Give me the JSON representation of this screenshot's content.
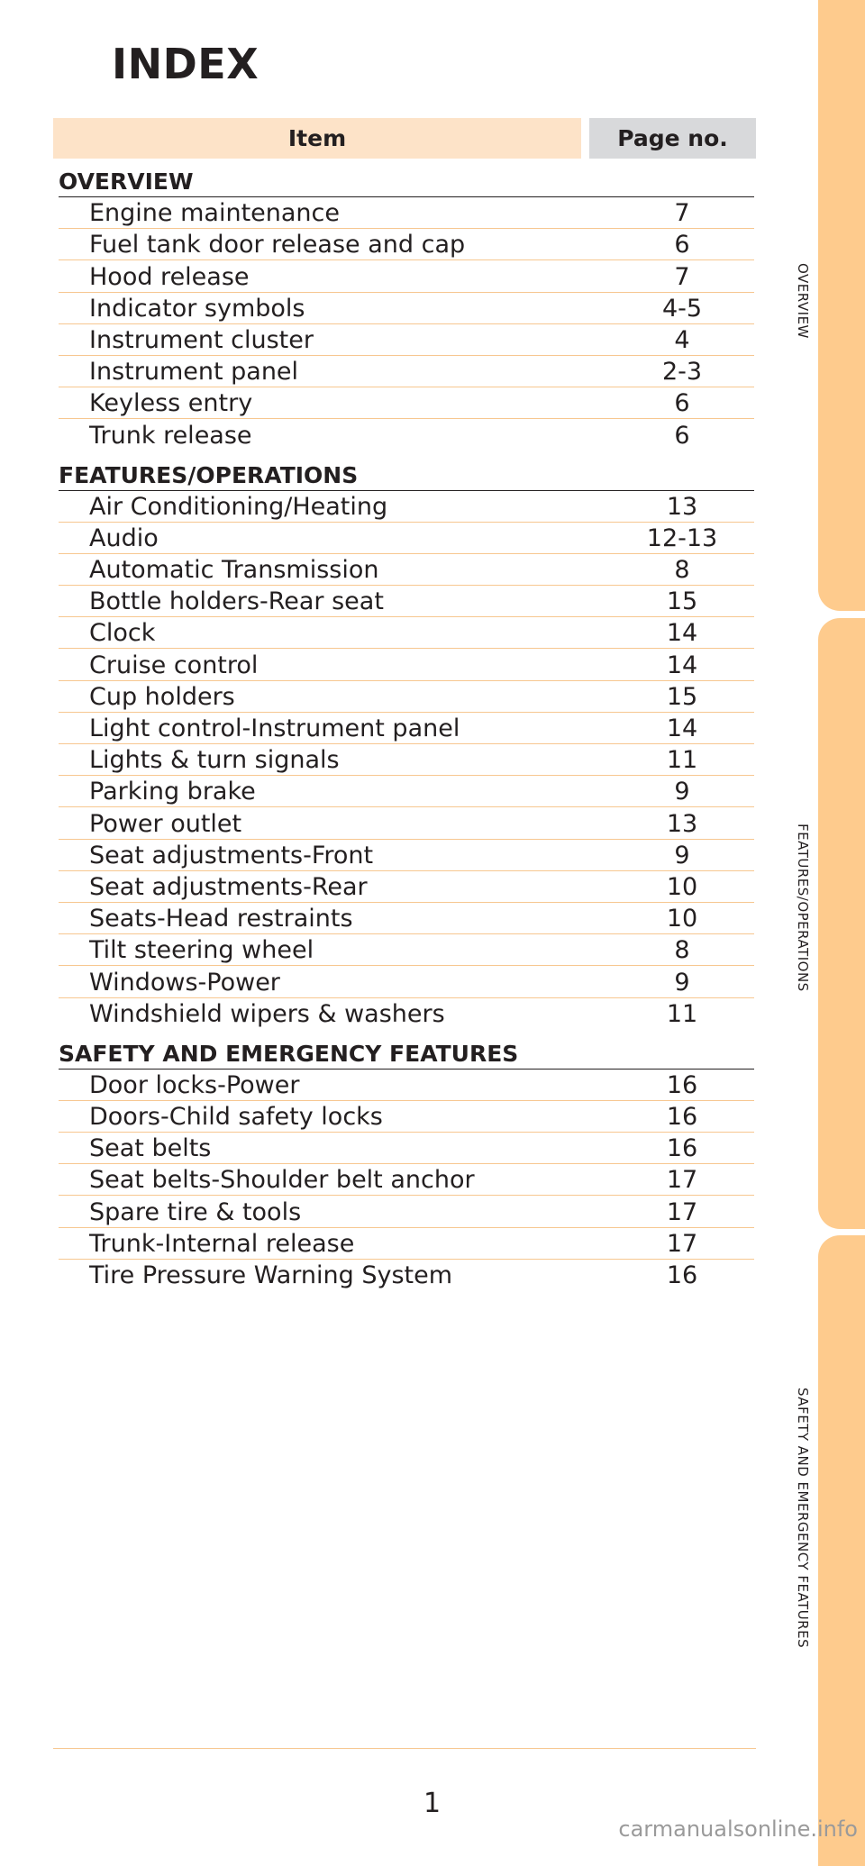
{
  "title": "INDEX",
  "columns": {
    "item": "Item",
    "page": "Page no."
  },
  "sections": [
    {
      "title": "OVERVIEW",
      "rows": [
        {
          "item": "Engine maintenance",
          "page": "7"
        },
        {
          "item": "Fuel tank door release and cap",
          "page": "6"
        },
        {
          "item": "Hood release",
          "page": "7"
        },
        {
          "item": "Indicator symbols",
          "page": "4-5"
        },
        {
          "item": "Instrument cluster",
          "page": "4"
        },
        {
          "item": "Instrument panel",
          "page": "2-3"
        },
        {
          "item": "Keyless entry",
          "page": "6"
        },
        {
          "item": "Trunk release",
          "page": "6"
        }
      ]
    },
    {
      "title": "FEATURES/OPERATIONS",
      "rows": [
        {
          "item": "Air Conditioning/Heating",
          "page": "13"
        },
        {
          "item": "Audio",
          "page": "12-13"
        },
        {
          "item": "Automatic Transmission",
          "page": "8"
        },
        {
          "item": "Bottle holders-Rear seat",
          "page": "15"
        },
        {
          "item": "Clock",
          "page": "14"
        },
        {
          "item": "Cruise control",
          "page": "14"
        },
        {
          "item": "Cup holders",
          "page": "15"
        },
        {
          "item": "Light control-Instrument panel",
          "page": "14"
        },
        {
          "item": "Lights & turn signals",
          "page": "11"
        },
        {
          "item": "Parking brake",
          "page": "9"
        },
        {
          "item": "Power outlet",
          "page": "13"
        },
        {
          "item": "Seat adjustments-Front",
          "page": "9"
        },
        {
          "item": "Seat adjustments-Rear",
          "page": "10"
        },
        {
          "item": "Seats-Head restraints",
          "page": "10"
        },
        {
          "item": "Tilt steering wheel",
          "page": "8"
        },
        {
          "item": "Windows-Power",
          "page": "9"
        },
        {
          "item": "Windshield wipers & washers",
          "page": "11"
        }
      ]
    },
    {
      "title": "SAFETY AND EMERGENCY FEATURES",
      "rows": [
        {
          "item": "Door locks-Power",
          "page": "16"
        },
        {
          "item": "Doors-Child safety locks",
          "page": "16"
        },
        {
          "item": "Seat belts",
          "page": "16"
        },
        {
          "item": "Seat belts-Shoulder belt anchor",
          "page": "17"
        },
        {
          "item": "Spare tire & tools",
          "page": "17"
        },
        {
          "item": "Trunk-Internal release",
          "page": "17"
        },
        {
          "item": "Tire Pressure Warning System",
          "page": "16"
        }
      ]
    }
  ],
  "side_tabs": [
    "OVERVIEW",
    "FEATURES/OPERATIONS",
    "SAFETY AND EMERGENCY FEATURES"
  ],
  "page_number": "1",
  "watermark": "carmanualsonline.info",
  "colors": {
    "tab": "#fecb8d",
    "item_header": "#fde3c8",
    "page_header": "#d8d9db",
    "row_rule": "#f7c790"
  }
}
